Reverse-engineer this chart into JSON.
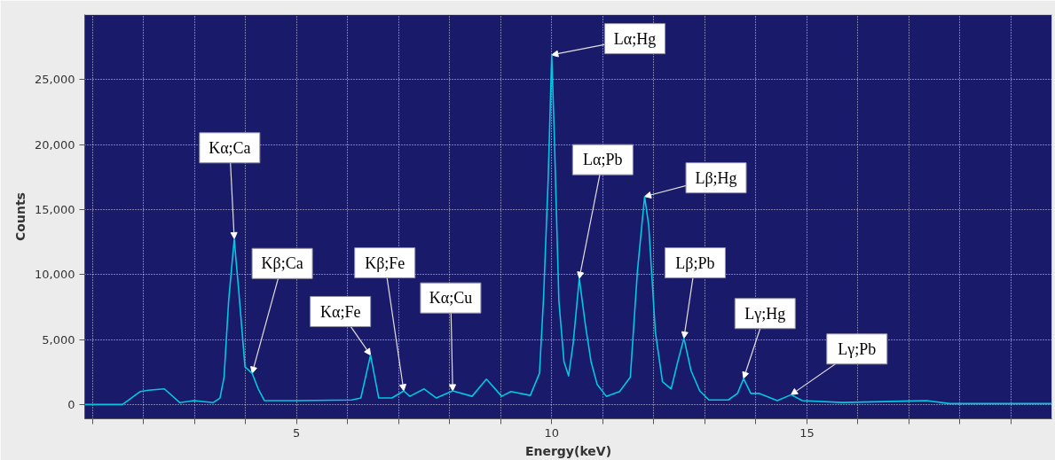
{
  "chart_data": {
    "type": "line",
    "xlabel": "Energy(keV)",
    "ylabel": "Counts",
    "x": [
      0.86,
      1.59,
      1.94,
      2.1,
      2.41,
      2.71,
      2.99,
      3.37,
      3.5,
      3.58,
      3.67,
      3.78,
      3.81,
      3.86,
      3.99,
      4.13,
      4.25,
      4.37,
      5.0,
      6.08,
      6.26,
      6.45,
      6.61,
      6.87,
      7.1,
      7.22,
      7.5,
      7.74,
      8.06,
      8.44,
      8.72,
      9.02,
      9.2,
      9.58,
      9.76,
      9.84,
      9.93,
      10.0,
      10.05,
      10.14,
      10.24,
      10.33,
      10.42,
      10.54,
      10.66,
      10.77,
      10.89,
      11.07,
      11.33,
      11.54,
      11.68,
      11.82,
      11.9,
      12.03,
      12.17,
      12.34,
      12.47,
      12.59,
      12.73,
      12.9,
      13.08,
      13.46,
      13.64,
      13.76,
      13.9,
      14.07,
      14.42,
      14.69,
      14.91,
      15.7,
      17.34,
      17.8,
      19.8
    ],
    "series": [
      {
        "color": "#00c8e0",
        "values": [
          0,
          0,
          1000,
          1100,
          1200,
          150,
          300,
          150,
          500,
          2100,
          8000,
          12750,
          11300,
          9100,
          2900,
          2400,
          1200,
          300,
          300,
          350,
          500,
          3800,
          500,
          500,
          1050,
          630,
          1200,
          500,
          1050,
          630,
          1950,
          630,
          1000,
          700,
          2400,
          8200,
          17300,
          26900,
          20800,
          8000,
          3300,
          2200,
          4700,
          9700,
          6100,
          3300,
          1550,
          630,
          1000,
          2100,
          10300,
          16000,
          13800,
          5600,
          1750,
          1200,
          3300,
          5100,
          2600,
          1050,
          350,
          350,
          850,
          2000,
          850,
          850,
          300,
          750,
          300,
          150,
          300,
          70,
          70
        ]
      }
    ],
    "xlim": [
      0.85,
      19.8
    ],
    "xticks": [
      {
        "value": 1,
        "label": null
      },
      {
        "value": 2,
        "label": null
      },
      {
        "value": 3,
        "label": null
      },
      {
        "value": 4,
        "label": null
      },
      5,
      {
        "value": 6,
        "label": null
      },
      {
        "value": 7,
        "label": null
      },
      {
        "value": 8,
        "label": null
      },
      {
        "value": 9,
        "label": null
      },
      10,
      {
        "value": 11,
        "label": null
      },
      {
        "value": 12,
        "label": null
      },
      {
        "value": 13,
        "label": null
      },
      {
        "value": 14,
        "label": null
      },
      15,
      {
        "value": 16,
        "label": null
      },
      {
        "value": 17,
        "label": null
      },
      {
        "value": 18,
        "label": null
      },
      {
        "value": 19,
        "label": null
      }
    ],
    "ylim": [
      -1100,
      30000
    ],
    "yticks": [
      0,
      {
        "value": 5000,
        "label": "5,000"
      },
      {
        "value": 10000,
        "label": "10,000"
      },
      {
        "value": 15000,
        "label": "15,000"
      },
      {
        "value": 20000,
        "label": "20,000"
      },
      {
        "value": 25000,
        "label": "25,000"
      }
    ],
    "grid": true,
    "marker": "none",
    "line_style": "solid",
    "annotations": [
      {
        "text": "Kα;Ca",
        "x": 3.78,
        "y": 12750
      },
      {
        "text": "Kβ;Ca",
        "x": 4.13,
        "y": 2400
      },
      {
        "text": "Kα;Fe",
        "x": 6.45,
        "y": 3800
      },
      {
        "text": "Kβ;Fe",
        "x": 7.1,
        "y": 1050
      },
      {
        "text": "Kα;Cu",
        "x": 8.06,
        "y": 1050
      },
      {
        "text": "Lα;Hg",
        "x": 10.0,
        "y": 26900
      },
      {
        "text": "Lα;Pb",
        "x": 10.54,
        "y": 9700
      },
      {
        "text": "Lβ;Hg",
        "x": 11.82,
        "y": 16000
      },
      {
        "text": "Lβ;Pb",
        "x": 12.59,
        "y": 5100
      },
      {
        "text": "Lγ;Hg",
        "x": 13.76,
        "y": 2000
      },
      {
        "text": "Lγ;Pb",
        "x": 14.69,
        "y": 750
      }
    ]
  }
}
